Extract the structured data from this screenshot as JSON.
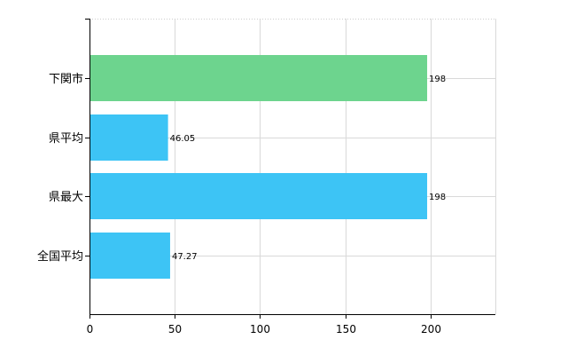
{
  "chart_data": {
    "type": "bar",
    "orientation": "horizontal",
    "categories": [
      "下関市",
      "県平均",
      "県最大",
      "全国平均"
    ],
    "values": [
      198,
      46.05,
      198,
      47.27
    ],
    "value_labels": [
      "198",
      "46.05",
      "198",
      "47.27"
    ],
    "bar_colors": [
      "#6dd48e",
      "#3dc4f5",
      "#3dc4f5",
      "#3dc4f5"
    ],
    "xlim": [
      0,
      238
    ],
    "xticks": [
      0,
      50,
      100,
      150,
      200
    ],
    "xtick_labels": [
      "0",
      "50",
      "100",
      "150",
      "200"
    ],
    "grid": true,
    "legend": "none",
    "title": "",
    "xlabel": "",
    "ylabel": ""
  }
}
